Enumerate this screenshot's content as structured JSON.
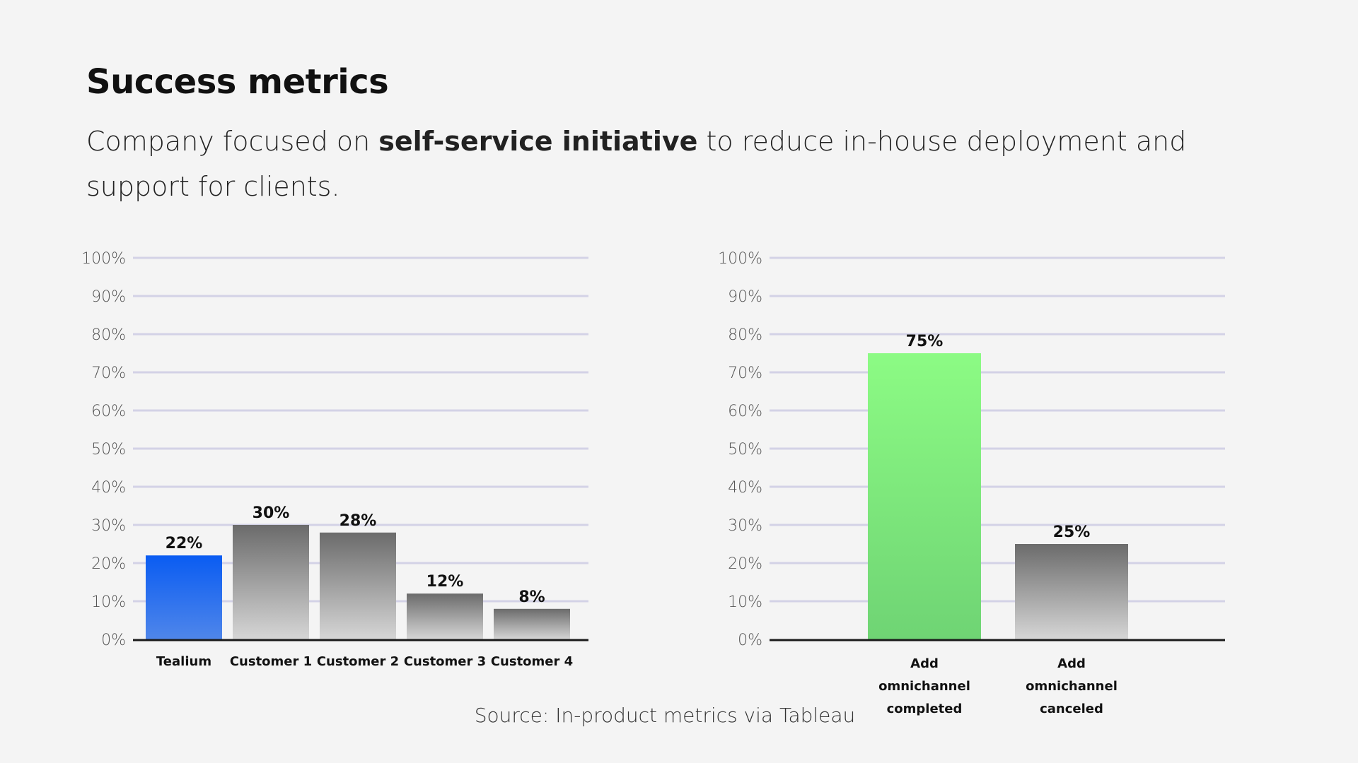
{
  "header": {
    "title": "Success metrics",
    "subtitle_pre": "Company focused on ",
    "subtitle_bold": "self-service initiative",
    "subtitle_post": " to reduce in-house deployment and support for clients."
  },
  "source": "Source: In-product metrics via Tableau",
  "colors": {
    "blue_top": "#0a5cf2",
    "blue_bottom": "#4f86ea",
    "gray_top": "#6b6b6b",
    "gray_bottom": "#d6d6d6",
    "green_top": "#8cfb84",
    "green_bottom": "#6fd474",
    "grid": "#d3d2e6",
    "axis": "#1a1a1a"
  },
  "chart_data": [
    {
      "type": "bar",
      "title": "",
      "xlabel": "",
      "ylabel": "",
      "ylim": [
        0,
        100
      ],
      "yticks": [
        "0%",
        "10%",
        "20%",
        "30%",
        "40%",
        "50%",
        "60%",
        "70%",
        "80%",
        "90%",
        "100%"
      ],
      "categories": [
        "Tealium",
        "Customer 1",
        "Customer 2",
        "Customer 3",
        "Customer 4"
      ],
      "values": [
        22,
        30,
        28,
        12,
        8
      ],
      "labels": [
        "22%",
        "30%",
        "28%",
        "12%",
        "8%"
      ],
      "bar_colors": [
        "blue",
        "gray",
        "gray",
        "gray",
        "gray"
      ],
      "grid": true
    },
    {
      "type": "bar",
      "title": "",
      "xlabel": "",
      "ylabel": "",
      "ylim": [
        0,
        100
      ],
      "yticks": [
        "0%",
        "10%",
        "20%",
        "30%",
        "40%",
        "50%",
        "60%",
        "70%",
        "80%",
        "90%",
        "100%"
      ],
      "categories": [
        [
          "Add",
          "omnichannel",
          "completed"
        ],
        [
          "Add",
          "omnichannel",
          "canceled"
        ]
      ],
      "values": [
        75,
        25
      ],
      "labels": [
        "75%",
        "25%"
      ],
      "bar_colors": [
        "green",
        "gray"
      ],
      "grid": true
    }
  ]
}
